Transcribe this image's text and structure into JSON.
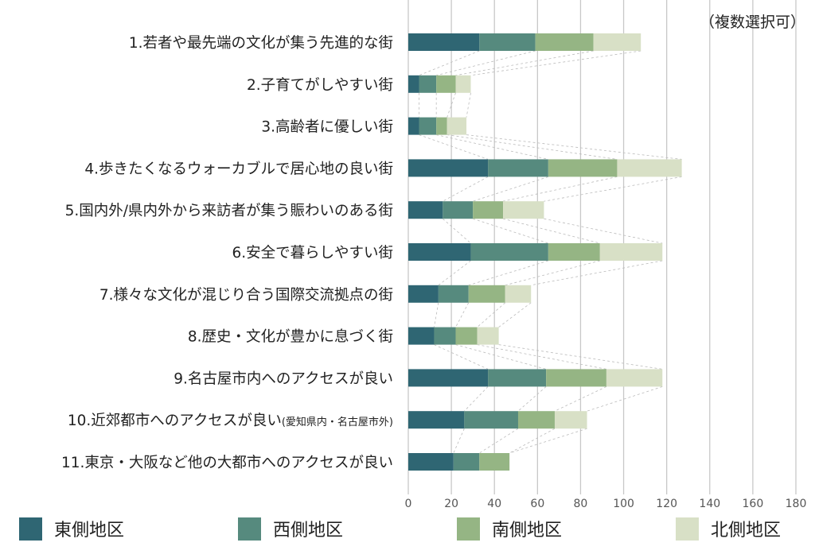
{
  "chart_data": {
    "type": "bar",
    "orientation": "horizontal",
    "stacked": true,
    "note": "（複数選択可）",
    "categories": [
      "1.若者や最先端の文化が集う先進的な街",
      "2.子育てがしやすい街",
      "3.高齢者に優しい街",
      "4.歩きたくなるウォーカブルで居心地の良い街",
      "5.国内外/県内外から来訪者が集う賑わいのある街",
      "6.安全で暮らしやすい街",
      "7.様々な文化が混じり合う国際交流拠点の街",
      "8.歴史・文化が豊かに息づく街",
      "9.名古屋市内へのアクセスが良い",
      "10.近郊都市へのアクセスが良い",
      "11.東京・大阪など他の大都市へのアクセスが良い"
    ],
    "category_suffix": {
      "9": "(愛知県内・名古屋市外)"
    },
    "series": [
      {
        "name": "東側地区",
        "color": "#2f6673",
        "values": [
          33,
          5,
          5,
          37,
          16,
          29,
          14,
          12,
          37,
          26,
          21
        ]
      },
      {
        "name": "西側地区",
        "color": "#568a7e",
        "values": [
          26,
          8,
          8,
          28,
          14,
          36,
          14,
          10,
          27,
          25,
          12
        ]
      },
      {
        "name": "南側地区",
        "color": "#95b584",
        "values": [
          27,
          9,
          5,
          32,
          14,
          24,
          17,
          10,
          28,
          17,
          14
        ]
      },
      {
        "name": "北側地区",
        "color": "#d8e0c6",
        "values": [
          22,
          7,
          9,
          30,
          19,
          29,
          12,
          10,
          26,
          15,
          0
        ]
      }
    ],
    "xlim": [
      0,
      180
    ],
    "xticks": [
      0,
      20,
      40,
      60,
      80,
      100,
      120,
      140,
      160,
      180
    ],
    "grid": true,
    "legend_position": "bottom"
  }
}
